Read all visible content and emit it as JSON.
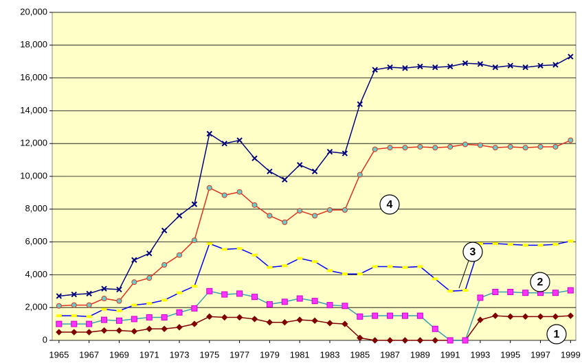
{
  "chart_data": {
    "type": "line",
    "x": [
      1965,
      1966,
      1967,
      1968,
      1969,
      1970,
      1971,
      1972,
      1973,
      1974,
      1975,
      1976,
      1977,
      1978,
      1979,
      1980,
      1981,
      1982,
      1983,
      1984,
      1985,
      1986,
      1987,
      1988,
      1989,
      1990,
      1991,
      1992,
      1993,
      1994,
      1995,
      1996,
      1997,
      1998,
      1999
    ],
    "xlim": [
      1964.55,
      1999.35
    ],
    "xticks": [
      1965,
      1967,
      1969,
      1971,
      1973,
      1975,
      1977,
      1979,
      1981,
      1983,
      1985,
      1987,
      1989,
      1991,
      1993,
      1995,
      1997,
      1999
    ],
    "ylim": [
      0,
      20000
    ],
    "yticks": [
      0,
      {
        "value": 2000,
        "label": "2,000"
      },
      {
        "value": 4000,
        "label": "4,000"
      },
      {
        "value": 6000,
        "label": "6,000"
      },
      {
        "value": 8000,
        "label": "8,000"
      },
      {
        "value": 10000,
        "label": "10,000"
      },
      {
        "value": 12000,
        "label": "12,000"
      },
      {
        "value": 14000,
        "label": "14,000"
      },
      {
        "value": 16000,
        "label": "16,000"
      },
      {
        "value": 18000,
        "label": "18,000"
      },
      {
        "value": 20000,
        "label": "20,000"
      }
    ],
    "grid": true,
    "series": [
      {
        "color": "#800000",
        "marker": "diamond",
        "marker_color": "#800000",
        "values": [
          500,
          500,
          500,
          600,
          600,
          550,
          700,
          700,
          800,
          1000,
          1450,
          1400,
          1400,
          1300,
          1100,
          1100,
          1250,
          1200,
          1050,
          1000,
          150,
          0,
          0,
          0,
          0,
          0,
          0,
          0,
          1250,
          1500,
          1450,
          1450,
          1450,
          1450,
          1500
        ]
      },
      {
        "color": "#33a0b0",
        "marker": "square",
        "marker_color": "#ff33ff",
        "values": [
          1000,
          1000,
          1000,
          1250,
          1200,
          1300,
          1400,
          1400,
          1700,
          1950,
          3000,
          2800,
          2850,
          2650,
          2200,
          2350,
          2550,
          2400,
          2150,
          2100,
          1450,
          1500,
          1500,
          1500,
          1500,
          700,
          0,
          0,
          2600,
          2950,
          2950,
          2900,
          2900,
          2900,
          3050
        ]
      },
      {
        "color": "#0000ff",
        "marker": "dash",
        "marker_color": "#ffff00",
        "values": [
          1500,
          1500,
          1450,
          1900,
          1800,
          2150,
          2250,
          2450,
          2900,
          3300,
          5900,
          5550,
          5600,
          5200,
          4450,
          4550,
          5000,
          4800,
          4250,
          4050,
          4050,
          4500,
          4500,
          4450,
          4500,
          3750,
          3000,
          3050,
          5900,
          5900,
          5850,
          5800,
          5800,
          5850,
          6050
        ]
      },
      {
        "color": "#e03020",
        "marker": "circle",
        "marker_color": "#66cccc",
        "values": [
          2100,
          2150,
          2150,
          2550,
          2400,
          3550,
          3800,
          4600,
          5200,
          6100,
          9300,
          8850,
          9050,
          8250,
          7600,
          7200,
          7900,
          7600,
          7950,
          7950,
          10100,
          11650,
          11750,
          11750,
          11800,
          11750,
          11800,
          11950,
          11900,
          11750,
          11800,
          11750,
          11800,
          11800,
          12200
        ]
      },
      {
        "color": "#000080",
        "marker": "cross",
        "marker_color": "#000080",
        "values": [
          2700,
          2800,
          2850,
          3150,
          3100,
          4900,
          5300,
          6700,
          7600,
          8300,
          12600,
          12000,
          12200,
          11100,
          10300,
          9800,
          10700,
          10300,
          11500,
          11400,
          14400,
          16500,
          16650,
          16600,
          16700,
          16650,
          16700,
          16900,
          16850,
          16650,
          16750,
          16650,
          16750,
          16800,
          17300
        ]
      }
    ],
    "annotations": [
      "4",
      "3",
      "2",
      "1"
    ]
  }
}
